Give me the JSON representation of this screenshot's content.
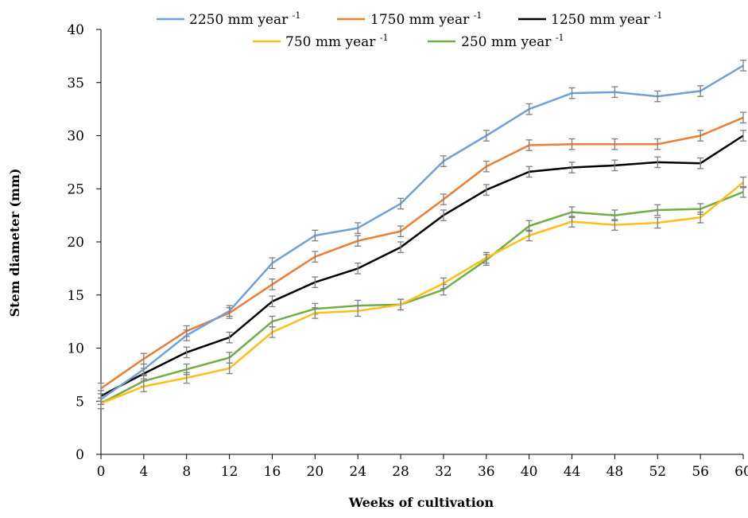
{
  "chart_data": {
    "type": "line",
    "xlabel": "Weeks of cultivation",
    "ylabel": "Stem diameter (mm)",
    "x": [
      0,
      4,
      8,
      12,
      16,
      20,
      24,
      28,
      32,
      36,
      40,
      44,
      48,
      52,
      56,
      60
    ],
    "xticks": [
      "0",
      "4",
      "8",
      "12",
      "16",
      "20",
      "24",
      "28",
      "32",
      "36",
      "40",
      "44",
      "48",
      "52",
      "56",
      "60"
    ],
    "yticks": [
      "0",
      "5",
      "10",
      "15",
      "20",
      "25",
      "30",
      "35",
      "40"
    ],
    "xlim": [
      0,
      60
    ],
    "ylim": [
      0,
      40
    ],
    "grid": false,
    "legend_position": "top",
    "legend_unit_prefix": "mm year",
    "legend_unit_exp": "-1",
    "series": [
      {
        "name": "2250",
        "color": "#6fa1d8",
        "error": 0.5,
        "values": [
          5.2,
          8.0,
          11.2,
          13.5,
          18.0,
          20.6,
          21.3,
          23.6,
          27.6,
          30.0,
          32.5,
          34.0,
          34.1,
          33.7,
          34.2,
          36.6
        ]
      },
      {
        "name": "1750",
        "color": "#ee7d31",
        "error": 0.5,
        "values": [
          6.2,
          9.0,
          11.6,
          13.3,
          16.0,
          18.6,
          20.1,
          21.0,
          24.0,
          27.1,
          29.1,
          29.2,
          29.2,
          29.2,
          30.0,
          31.7
        ]
      },
      {
        "name": "1250",
        "color": "#000000",
        "error": 0.5,
        "values": [
          5.5,
          7.6,
          9.6,
          11.0,
          14.4,
          16.2,
          17.5,
          19.5,
          22.5,
          24.9,
          26.6,
          27.0,
          27.2,
          27.5,
          27.4,
          30.0
        ]
      },
      {
        "name": "750",
        "color": "#fdbf15",
        "error": 0.5,
        "values": [
          4.8,
          6.4,
          7.2,
          8.1,
          11.5,
          13.3,
          13.5,
          14.1,
          16.1,
          18.5,
          20.6,
          21.9,
          21.6,
          21.8,
          22.3,
          25.6
        ]
      },
      {
        "name": "250",
        "color": "#70ad47",
        "error": 0.5,
        "values": [
          4.8,
          6.9,
          8.0,
          9.1,
          12.5,
          13.7,
          14.0,
          14.1,
          15.5,
          18.3,
          21.5,
          22.8,
          22.5,
          23.0,
          23.1,
          24.7
        ]
      }
    ]
  }
}
